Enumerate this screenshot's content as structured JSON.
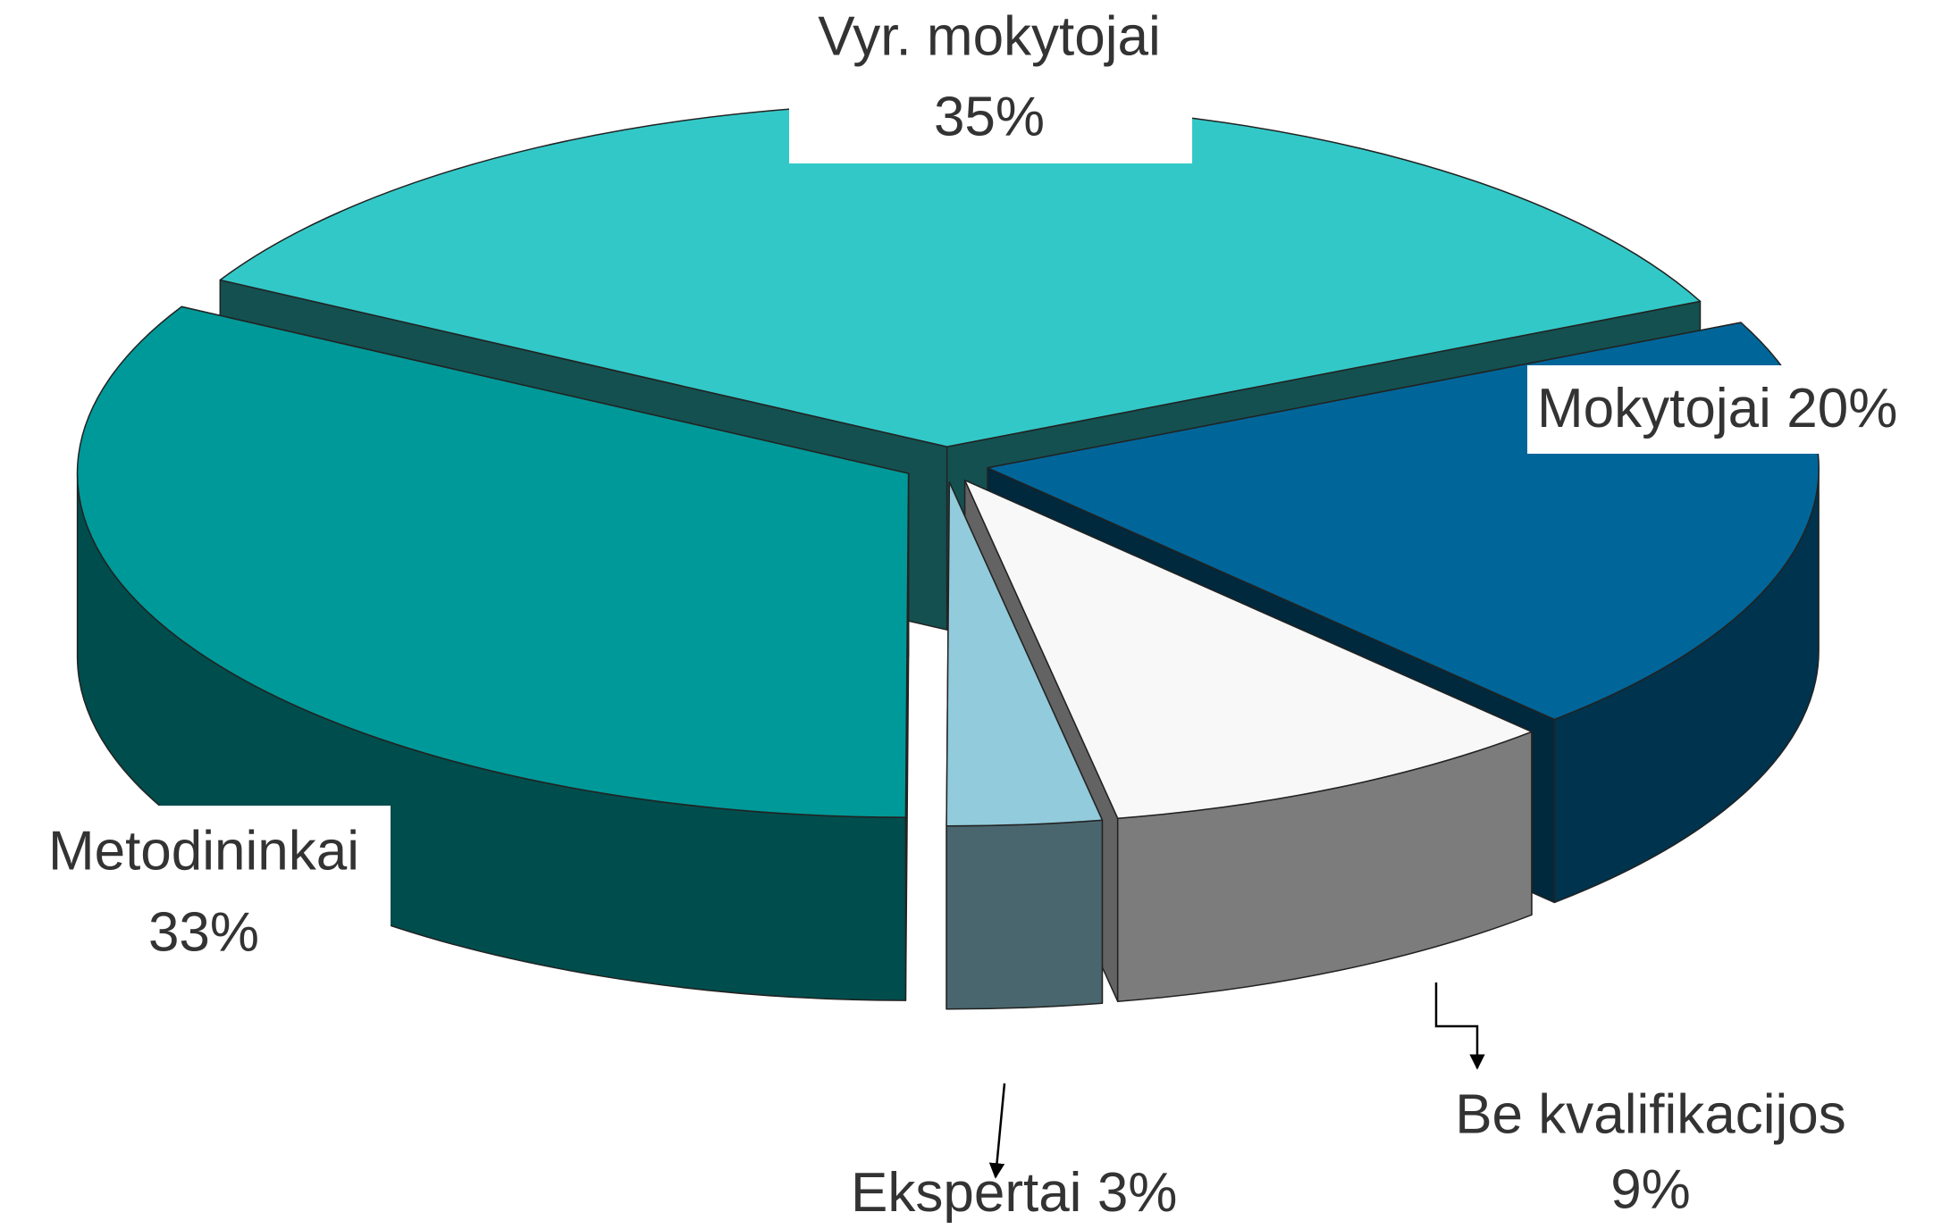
{
  "chart_data": {
    "type": "pie3d",
    "categories": [
      "Vyr. mokytojai",
      "Mokytojai",
      "Be kvalifikacijos",
      "Ekspertai",
      "Metodininkai"
    ],
    "values": [
      35,
      20,
      9,
      3,
      33
    ],
    "value_labels": [
      "35%",
      "20%",
      "9%",
      "3%",
      "33%"
    ],
    "colors": [
      "#33c8c8",
      "#006699",
      "#f8f8f8",
      "#92cbdb",
      "#009999"
    ]
  }
}
